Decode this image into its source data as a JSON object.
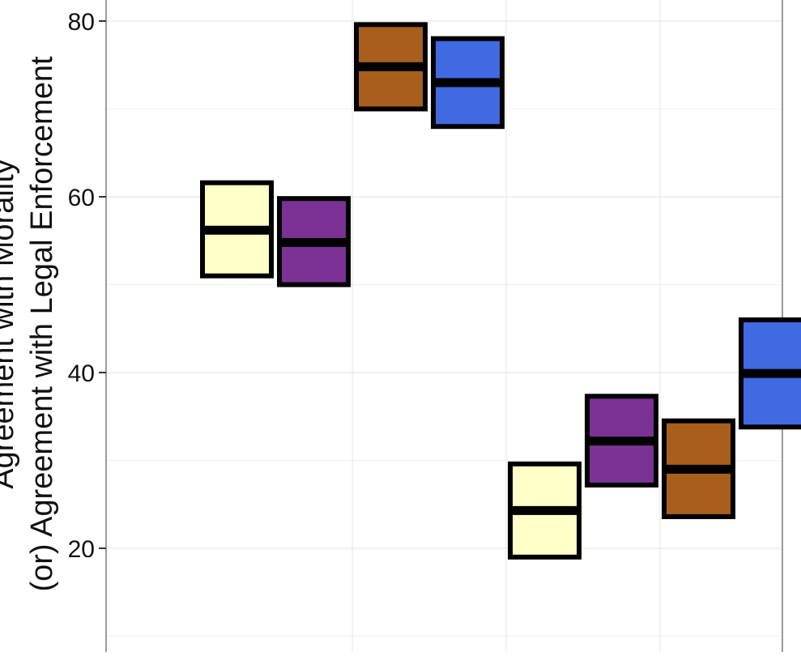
{
  "chart_data": {
    "type": "crossbar",
    "ylabel_lines": [
      "Agreement with Morality",
      "(or) Agreement with Legal Enforcement"
    ],
    "ylim": [
      9,
      83
    ],
    "y_ticks": [
      20,
      40,
      60,
      80
    ],
    "y_tick_labels": [
      "20",
      "40",
      "60",
      "80"
    ],
    "grid": true,
    "x_groups": [
      1,
      2,
      3,
      4
    ],
    "boxes": [
      {
        "x": 1,
        "offset": -0.25,
        "low": 51.0,
        "mid": 56.2,
        "high": 61.6,
        "color": "#ffffc8"
      },
      {
        "x": 1,
        "offset": 0.25,
        "low": 50.0,
        "mid": 54.8,
        "high": 59.8,
        "color": "#7b3294"
      },
      {
        "x": 2,
        "offset": -0.25,
        "low": 70.0,
        "mid": 74.8,
        "high": 79.6,
        "color": "#a85f1b"
      },
      {
        "x": 2,
        "offset": 0.25,
        "low": 68.0,
        "mid": 73.0,
        "high": 78.0,
        "color": "#4169e1"
      },
      {
        "x": 3,
        "offset": -0.25,
        "low": 19.0,
        "mid": 24.3,
        "high": 29.6,
        "color": "#ffffc8"
      },
      {
        "x": 3,
        "offset": 0.25,
        "low": 27.2,
        "mid": 32.2,
        "high": 37.3,
        "color": "#7b3294"
      },
      {
        "x": 4,
        "offset": -0.25,
        "low": 23.6,
        "mid": 29.0,
        "high": 34.5,
        "color": "#a85f1b"
      },
      {
        "x": 4,
        "offset": 0.25,
        "low": 33.8,
        "mid": 39.9,
        "high": 46.0,
        "color": "#4169e1"
      }
    ]
  }
}
